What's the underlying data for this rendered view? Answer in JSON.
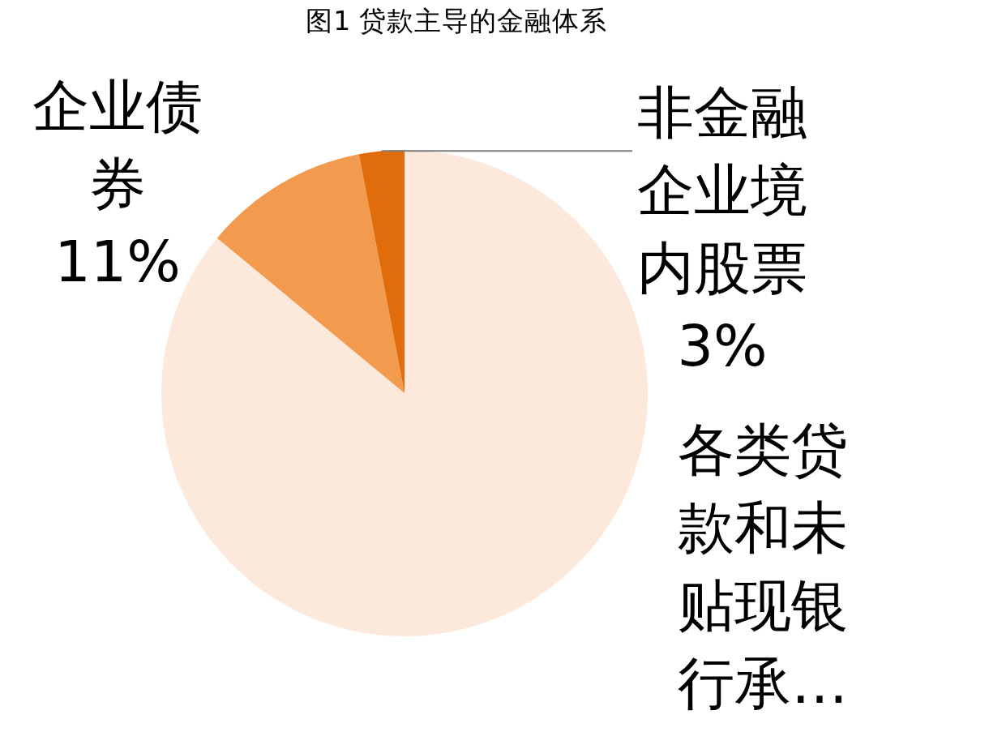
{
  "chart_data": {
    "type": "pie",
    "title": "图1 贷款主导的金融体系",
    "categories": [
      "各类贷款和未贴现银行承…",
      "企业债券",
      "非金融企业境内股票"
    ],
    "values": [
      86,
      11,
      3
    ],
    "colors": [
      "#fde9db",
      "#f29b4f",
      "#e06c0c"
    ],
    "value_labels": [
      null,
      "11%",
      "3%"
    ]
  }
}
